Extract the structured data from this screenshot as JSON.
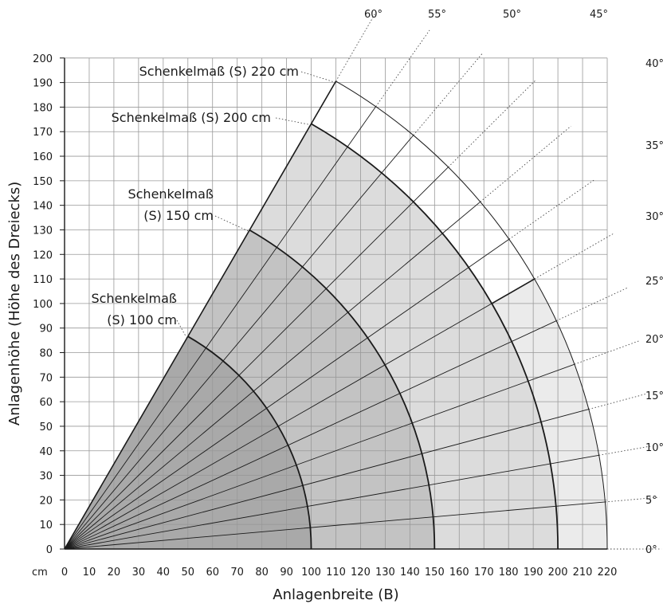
{
  "chart_data": {
    "type": "area",
    "xlabel": "Anlagenbreite (B)",
    "ylabel": "Anlagenhöhe (Höhe des Dreiecks)",
    "unit_label": "cm",
    "xlim": [
      0,
      220
    ],
    "ylim": [
      0,
      200
    ],
    "xticks": [
      0,
      10,
      20,
      30,
      40,
      50,
      60,
      70,
      80,
      90,
      100,
      110,
      120,
      130,
      140,
      150,
      160,
      170,
      180,
      190,
      200,
      210,
      220
    ],
    "yticks": [
      0,
      10,
      20,
      30,
      40,
      50,
      60,
      70,
      80,
      90,
      100,
      110,
      120,
      130,
      140,
      150,
      160,
      170,
      180,
      190,
      200
    ],
    "grid": true,
    "angles_deg": [
      0,
      5,
      10,
      15,
      20,
      25,
      30,
      35,
      40,
      45,
      50,
      55,
      60
    ],
    "angle_labels": [
      "0°",
      "5°",
      "10°",
      "15°",
      "20°",
      "25°",
      "30°",
      "35°",
      "40°",
      "45°",
      "50°",
      "55°",
      "60°"
    ],
    "radii_cm": [
      100,
      150,
      200,
      220
    ],
    "max_angle_deg": 60,
    "light_band_max_angle_deg": 30,
    "annotations": [
      {
        "lines": [
          "Schenkelmaß (S) 220 cm"
        ],
        "radius": 220
      },
      {
        "lines": [
          "Schenkelmaß (S) 200 cm"
        ],
        "radius": 200
      },
      {
        "lines": [
          "Schenkelmaß",
          "(S) 150 cm"
        ],
        "radius": 150
      },
      {
        "lines": [
          "Schenkelmaß",
          "(S) 100 cm"
        ],
        "radius": 100
      }
    ],
    "colors": {
      "r100": "#a9a9a9",
      "r150": "#c3c3c3",
      "r200": "#dcdcdc",
      "r220": "#ebebeb",
      "grid": "#999999",
      "line": "#1a1a1a"
    }
  }
}
